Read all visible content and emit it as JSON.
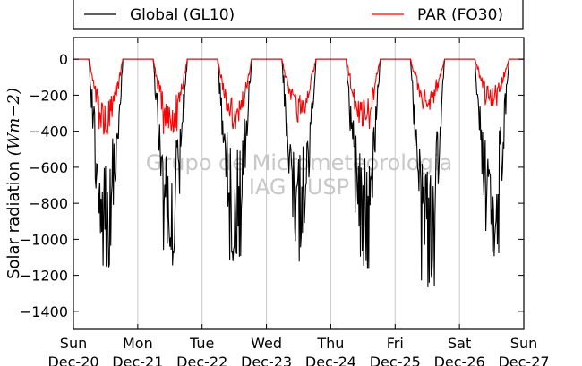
{
  "chart_data": {
    "type": "line",
    "ylabel_text": "Solar radiation ",
    "ylabel_unit": "(Wm−2)",
    "ylim": [
      -1500,
      120
    ],
    "yticks": [
      0,
      -200,
      -400,
      -600,
      -800,
      -1000,
      -1200,
      -1400
    ],
    "xlim": [
      0,
      7
    ],
    "xticks": [
      {
        "x": 0,
        "day": "Sun",
        "date": "Dec-20"
      },
      {
        "x": 1,
        "day": "Mon",
        "date": "Dec-21"
      },
      {
        "x": 2,
        "day": "Tue",
        "date": "Dec-22"
      },
      {
        "x": 3,
        "day": "Wed",
        "date": "Dec-23"
      },
      {
        "x": 4,
        "day": "Thu",
        "date": "Dec-24"
      },
      {
        "x": 5,
        "day": "Fri",
        "date": "Dec-25"
      },
      {
        "x": 6,
        "day": "Sat",
        "date": "Dec-26"
      },
      {
        "x": 7,
        "day": "Sun",
        "date": "Dec-27"
      }
    ],
    "grid": "vertical",
    "legend_position": "top, above plot",
    "watermark": [
      "Grupo de Micrometeorologia",
      "IAG / USP"
    ],
    "series": [
      {
        "name": "Global (GL10)",
        "color": "#000000",
        "daily_peak": [
          -1200,
          -1150,
          -1140,
          -1140,
          -1180,
          -1300,
          -1130
        ],
        "seed": 7
      },
      {
        "name": "PAR (FO30)",
        "color": "#ff0000",
        "daily_peak": [
          -420,
          -420,
          -400,
          -350,
          -410,
          -290,
          -260
        ],
        "seed": 13
      }
    ]
  }
}
